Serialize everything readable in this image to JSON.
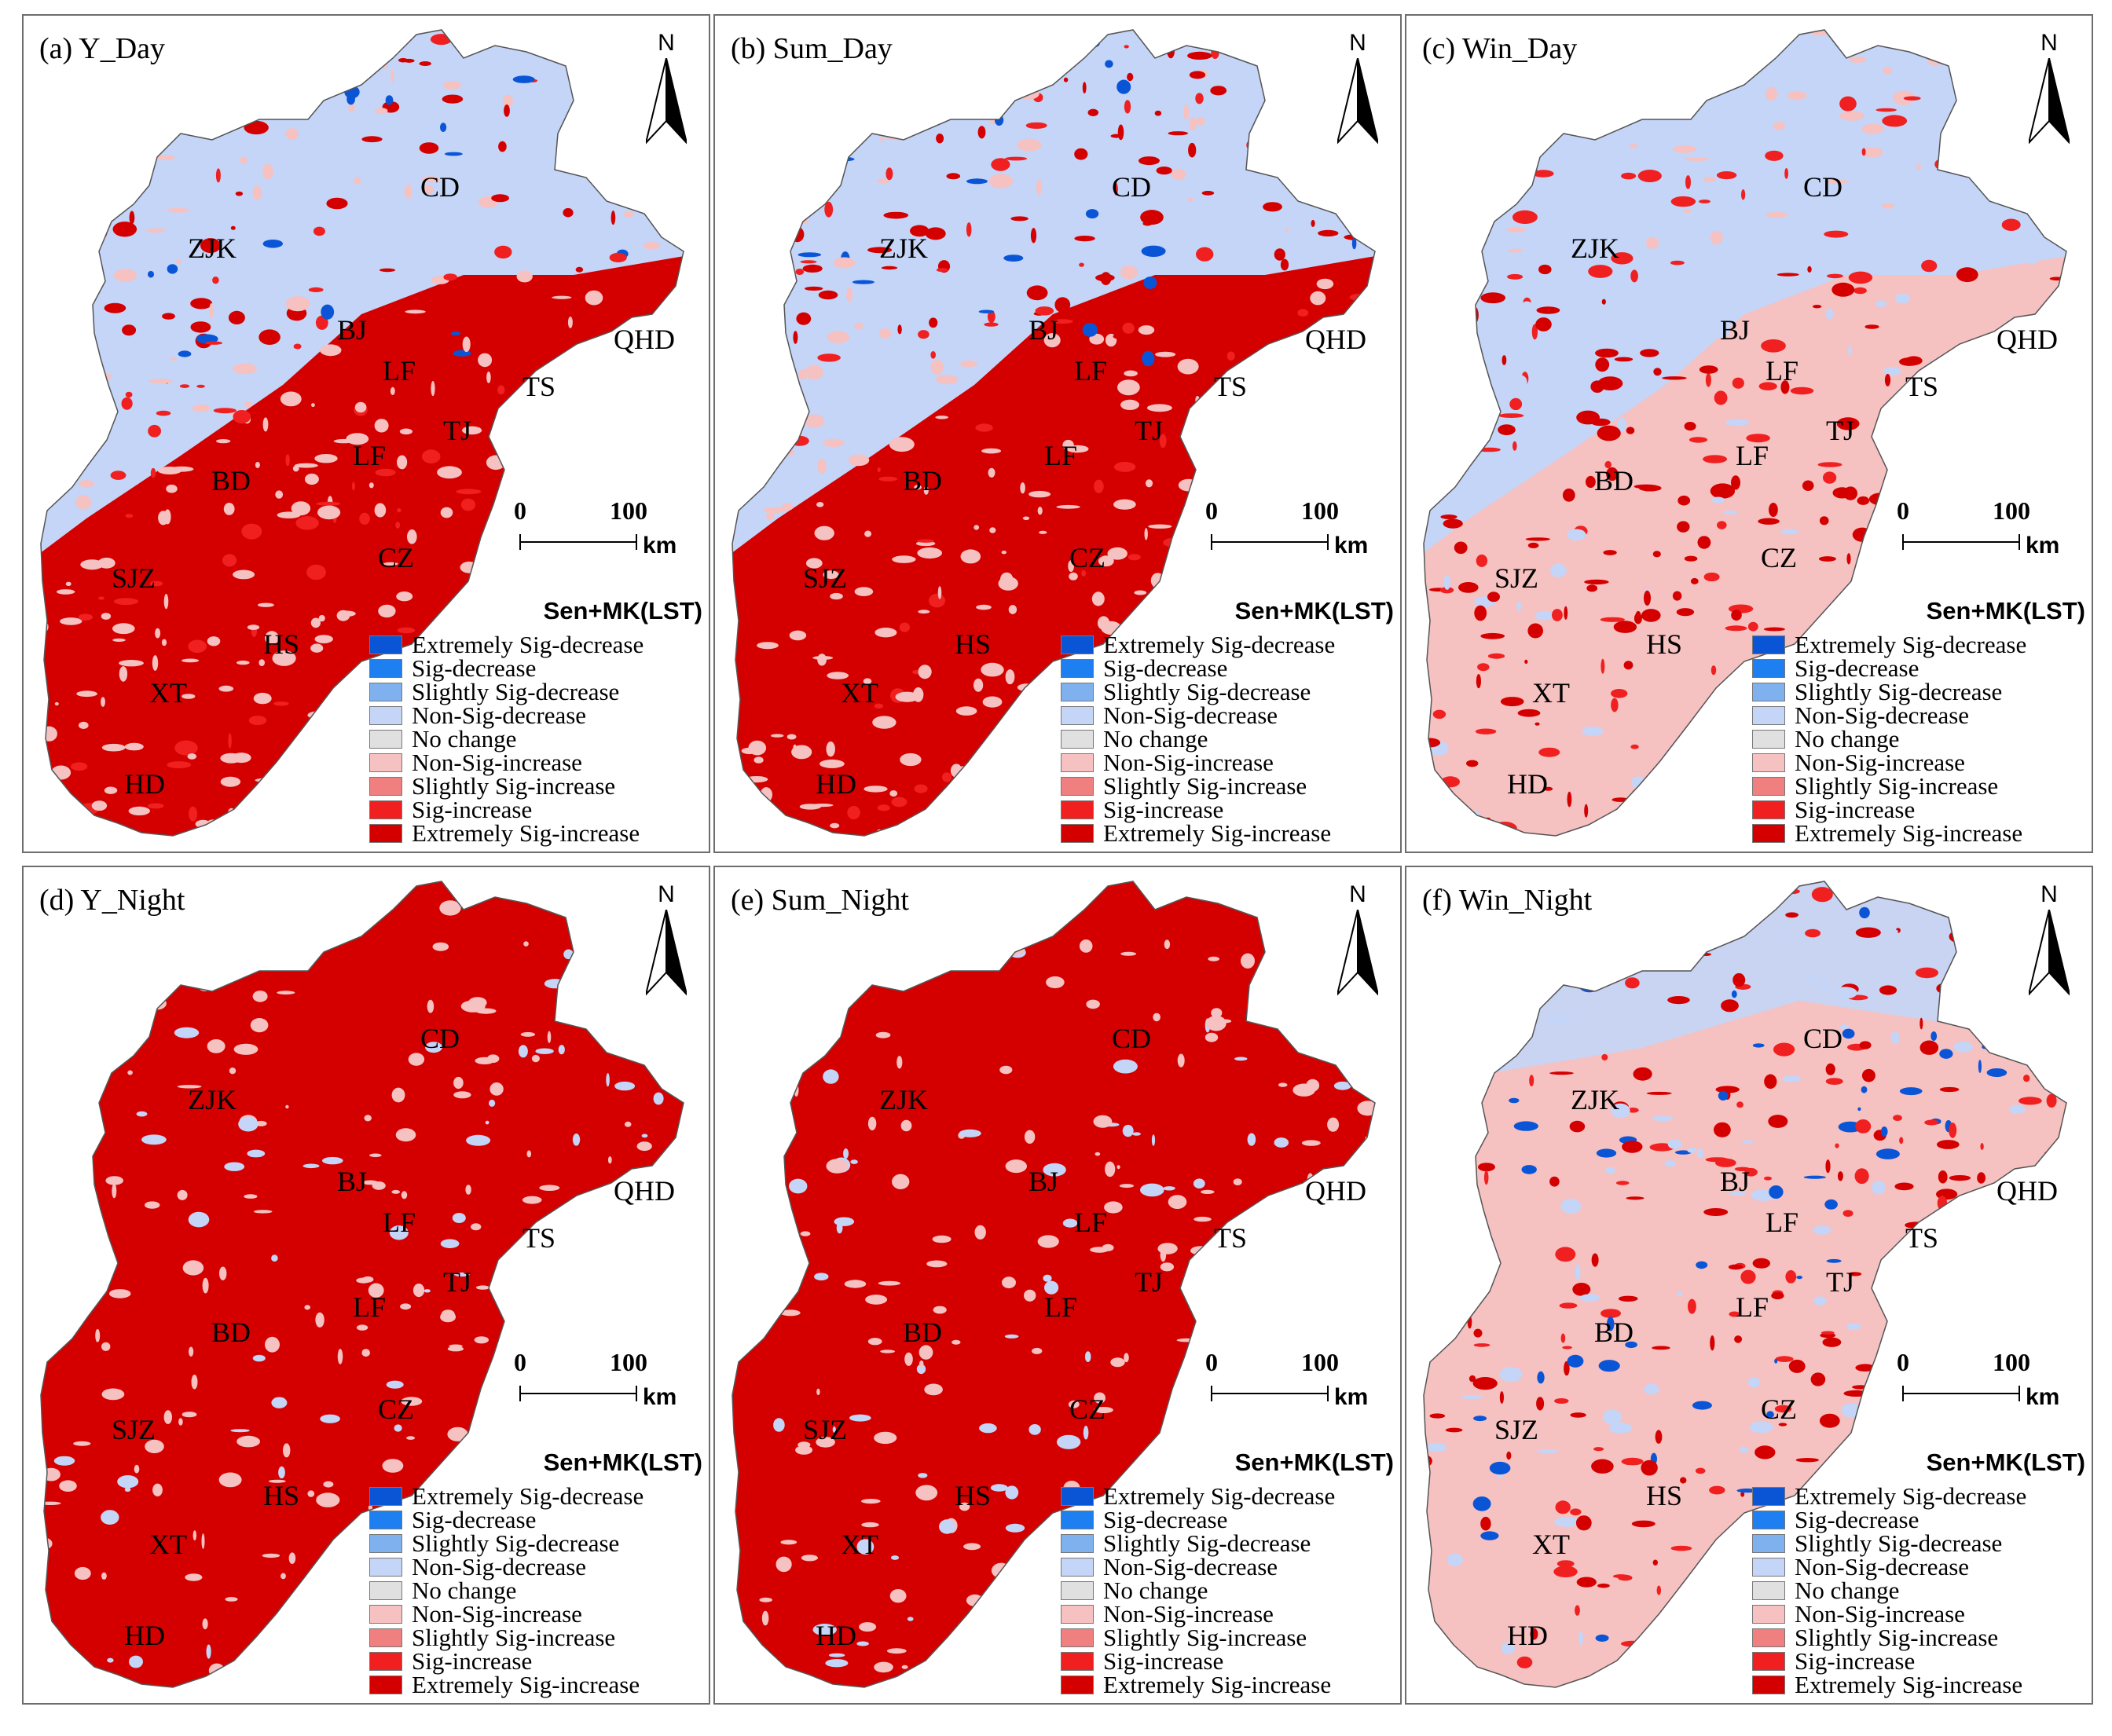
{
  "legend": {
    "title": "Sen+MK(LST)",
    "items": [
      {
        "label": "Extremely Sig-decrease",
        "color": "#0a55d6"
      },
      {
        "label": "Sig-decrease",
        "color": "#1e7ff0"
      },
      {
        "label": "Slightly Sig-decrease",
        "color": "#7fb1ef"
      },
      {
        "label": "Non-Sig-decrease",
        "color": "#c4d5f7"
      },
      {
        "label": "No change",
        "color": "#e0e0e0"
      },
      {
        "label": "Non-Sig-increase",
        "color": "#f6c1c1"
      },
      {
        "label": "Slightly Sig-increase",
        "color": "#f08080"
      },
      {
        "label": "Sig-increase",
        "color": "#f02020"
      },
      {
        "label": "Extremely Sig-increase",
        "color": "#d40000"
      }
    ]
  },
  "north_label": "N",
  "scale": {
    "min_label": "0",
    "max_label": "100",
    "unit": "km"
  },
  "panels": [
    {
      "title": "(a) Y_Day",
      "dominant": "mixed-day",
      "cities": [
        "CD",
        "ZJK",
        "BJ",
        "QHD",
        "LF",
        "TS",
        "TJ",
        "LF",
        "BD",
        "CZ",
        "SJZ",
        "HS",
        "XT",
        "HD"
      ]
    },
    {
      "title": "(b) Sum_Day",
      "dominant": "mixed-day",
      "cities": [
        "CD",
        "ZJK",
        "BJ",
        "QHD",
        "LF",
        "TS",
        "TJ",
        "LF",
        "BD",
        "CZ",
        "SJZ",
        "HS",
        "XT",
        "HD"
      ]
    },
    {
      "title": "(c) Win_Day",
      "dominant": "winter-day",
      "cities": [
        "CD",
        "ZJK",
        "BJ",
        "QHD",
        "LF",
        "TS",
        "TJ",
        "LF",
        "BD",
        "CZ",
        "SJZ",
        "HS",
        "XT",
        "HD"
      ]
    },
    {
      "title": "(d) Y_Night",
      "dominant": "red",
      "cities": [
        "CD",
        "ZJK",
        "BJ",
        "QHD",
        "LF",
        "TS",
        "TJ",
        "LF",
        "BD",
        "CZ",
        "SJZ",
        "HS",
        "XT",
        "HD"
      ]
    },
    {
      "title": "(e) Sum_Night",
      "dominant": "red",
      "cities": [
        "CD",
        "ZJK",
        "BJ",
        "QHD",
        "LF",
        "TS",
        "TJ",
        "LF",
        "BD",
        "CZ",
        "SJZ",
        "HS",
        "XT",
        "HD"
      ]
    },
    {
      "title": "(f) Win_Night",
      "dominant": "winter-night",
      "cities": [
        "CD",
        "ZJK",
        "BJ",
        "QHD",
        "LF",
        "TS",
        "TJ",
        "LF",
        "BD",
        "CZ",
        "SJZ",
        "HS",
        "XT",
        "HD"
      ]
    }
  ]
}
